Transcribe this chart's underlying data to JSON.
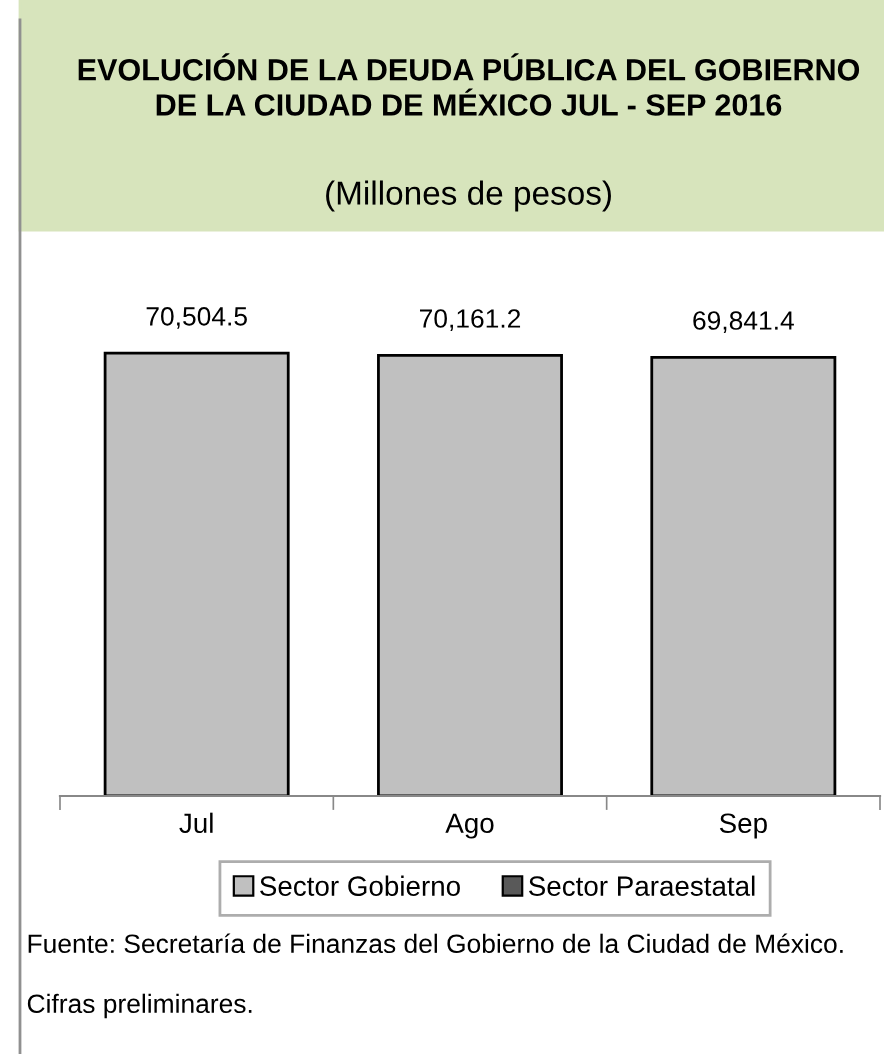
{
  "chart_data": {
    "type": "bar",
    "title": "EVOLUCIÓN DE LA DEUDA PÚBLICA DEL GOBIERNO DE LA CIUDAD DE MÉXICO JUL - SEP 2016",
    "subtitle": "(Millones de pesos)",
    "categories": [
      "Jul",
      "Ago",
      "Sep"
    ],
    "series": [
      {
        "name": "Sector Gobierno",
        "color": "#c0c0c0",
        "values": [
          70504.5,
          70161.2,
          69841.4
        ],
        "value_labels": [
          "70,504.5",
          "70,161.2",
          "69,841.4"
        ]
      },
      {
        "name": "Sector Paraestatal",
        "color": "#595959",
        "values": [
          null,
          null,
          null
        ]
      }
    ],
    "legend": "bottom",
    "annotations": [
      "Fuente: Secretaría de Finanzas del Gobierno de la Ciudad de México.",
      "Cifras preliminares."
    ]
  }
}
